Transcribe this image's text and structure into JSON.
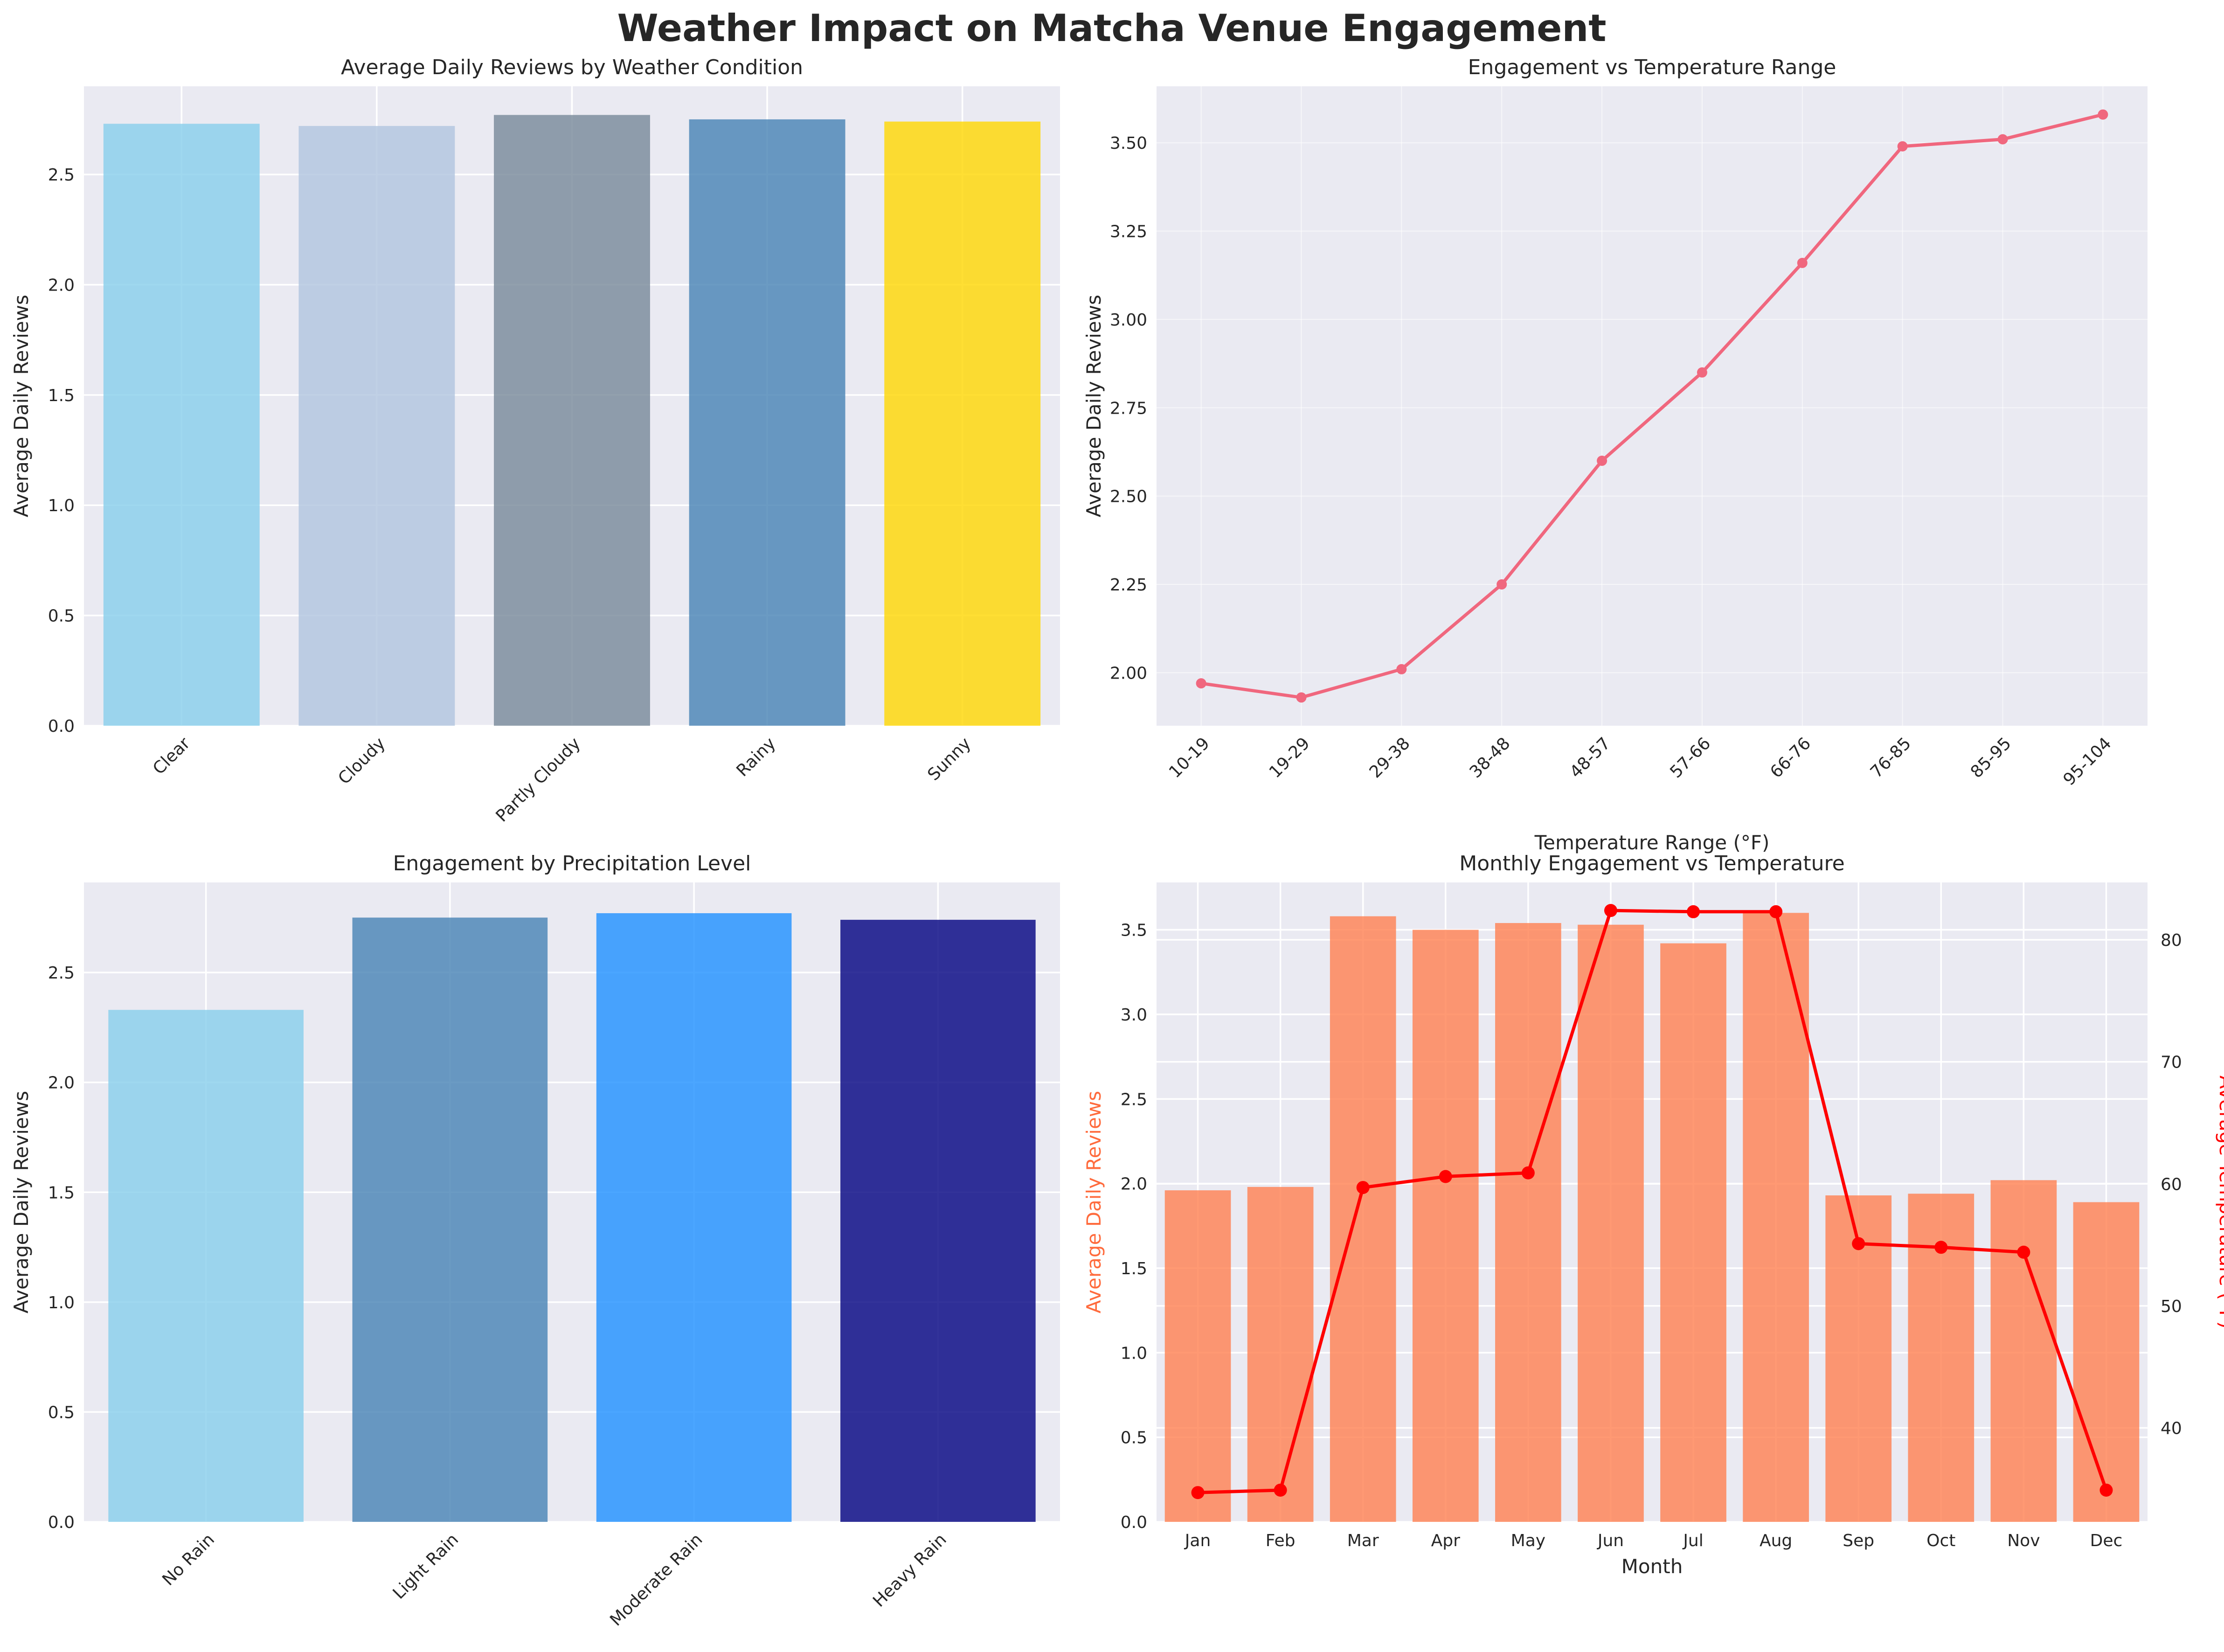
{
  "figure_title": "Weather Impact on Matcha Venue Engagement",
  "chart_data": [
    {
      "id": "weather",
      "type": "bar",
      "title": "Average Daily Reviews by Weather Condition",
      "xlabel": "",
      "ylabel": "Average Daily Reviews",
      "categories": [
        "Clear",
        "Cloudy",
        "Partly Cloudy",
        "Rainy",
        "Sunny"
      ],
      "values": [
        2.73,
        2.72,
        2.77,
        2.75,
        2.74
      ],
      "colors": [
        "#87CEEB",
        "#B0C4DE",
        "#778899",
        "#4682B4",
        "#FFD700"
      ],
      "ylim": [
        0,
        2.9
      ],
      "yticks": [
        0.0,
        0.5,
        1.0,
        1.5,
        2.0,
        2.5
      ],
      "ytick_labels": [
        "0.0",
        "0.5",
        "1.0",
        "1.5",
        "2.0",
        "2.5"
      ],
      "xtick_rotation": 45
    },
    {
      "id": "temperature",
      "type": "line",
      "title": "Engagement vs Temperature Range",
      "xlabel": "Temperature Range (°F)",
      "ylabel": "Average Daily Reviews",
      "categories": [
        "10-19",
        "19-29",
        "29-38",
        "38-48",
        "48-57",
        "57-66",
        "66-76",
        "76-85",
        "85-95",
        "95-104"
      ],
      "values": [
        1.97,
        1.93,
        2.01,
        2.25,
        2.6,
        2.85,
        3.16,
        3.49,
        3.51,
        3.58
      ],
      "color": "#F0677E",
      "ylim": [
        1.85,
        3.66
      ],
      "yticks": [
        2.0,
        2.25,
        2.5,
        2.75,
        3.0,
        3.25,
        3.5
      ],
      "ytick_labels": [
        "2.00",
        "2.25",
        "2.50",
        "2.75",
        "3.00",
        "3.25",
        "3.50"
      ],
      "xtick_rotation": 45
    },
    {
      "id": "precipitation",
      "type": "bar",
      "title": "Engagement by Precipitation Level",
      "xlabel": "",
      "ylabel": "Average Daily Reviews",
      "categories": [
        "No Rain",
        "Light Rain",
        "Moderate Rain",
        "Heavy Rain"
      ],
      "values": [
        2.33,
        2.75,
        2.77,
        2.74
      ],
      "colors": [
        "#87CEEB",
        "#4682B4",
        "#1E90FF",
        "#000080"
      ],
      "ylim": [
        0,
        2.91
      ],
      "yticks": [
        0.0,
        0.5,
        1.0,
        1.5,
        2.0,
        2.5
      ],
      "ytick_labels": [
        "0.0",
        "0.5",
        "1.0",
        "1.5",
        "2.0",
        "2.5"
      ],
      "xtick_rotation": 45
    },
    {
      "id": "monthly",
      "type": "bar+line",
      "title": "Monthly Engagement vs Temperature",
      "xlabel": "Month",
      "ylabel": "Average Daily Reviews",
      "ylabel_right": "Average Temperature (°F)",
      "categories": [
        "Jan",
        "Feb",
        "Mar",
        "Apr",
        "May",
        "Jun",
        "Jul",
        "Aug",
        "Sep",
        "Oct",
        "Nov",
        "Dec"
      ],
      "series": [
        {
          "name": "Average Daily Reviews",
          "type": "bar",
          "axis": "left",
          "color": "#FF7F50",
          "values": [
            1.96,
            1.98,
            3.58,
            3.5,
            3.54,
            3.53,
            3.42,
            3.6,
            1.93,
            1.94,
            2.02,
            1.89
          ]
        },
        {
          "name": "Average Temperature (°F)",
          "type": "line",
          "axis": "right",
          "color": "#FF0000",
          "values": [
            34.7,
            34.9,
            59.7,
            60.6,
            60.9,
            82.4,
            82.3,
            82.3,
            55.1,
            54.8,
            54.4,
            34.9
          ]
        }
      ],
      "ylim": [
        0,
        3.78
      ],
      "yticks": [
        0.0,
        0.5,
        1.0,
        1.5,
        2.0,
        2.5,
        3.0,
        3.5
      ],
      "ytick_labels": [
        "0.0",
        "0.5",
        "1.0",
        "1.5",
        "2.0",
        "2.5",
        "3.0",
        "3.5"
      ],
      "ylim_right": [
        32.3,
        84.7
      ],
      "yticks_right": [
        40,
        50,
        60,
        70,
        80
      ],
      "ytick_labels_right": [
        "40",
        "50",
        "60",
        "70",
        "80"
      ],
      "left_label_color": "#FF6B3D",
      "right_label_color": "#FF0000"
    }
  ]
}
